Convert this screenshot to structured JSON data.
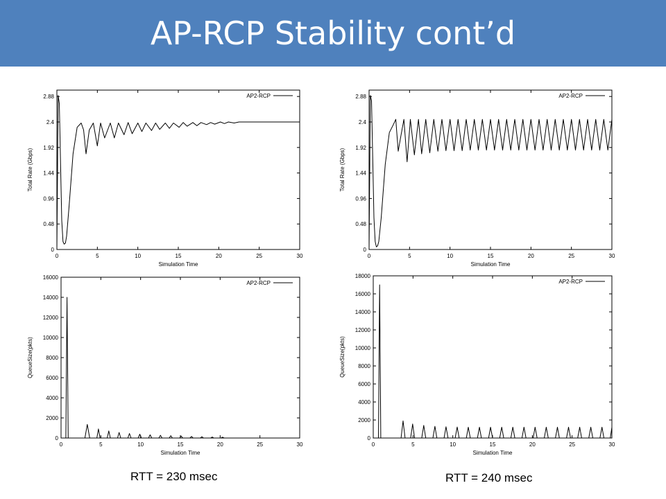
{
  "slide": {
    "title": "AP-RCP Stability cont’d",
    "caption_left": "RTT = 230  msec",
    "caption_right": "RTT = 240  msec",
    "accent_color": "#4f81bd",
    "title_color": "#ffffff"
  },
  "chart_data": [
    {
      "type": "line",
      "xlabel": "Simulation Time",
      "ylabel": "Total Rate (Gbps)",
      "xlim": [
        0,
        30
      ],
      "ylim": [
        0,
        3.0
      ],
      "xticks": [
        0,
        5,
        10,
        15,
        20,
        25,
        30
      ],
      "yticks": [
        0,
        0.48,
        0.96,
        1.44,
        1.92,
        2.4,
        2.88
      ],
      "xtick_labels": [
        "0",
        "5",
        "10",
        "15",
        "20",
        "25",
        "30"
      ],
      "ytick_labels": [
        "0",
        "0.48",
        "0.96",
        "1.44",
        "1.92",
        "2.4",
        "2.88"
      ],
      "legend": "top-right",
      "grid": false,
      "series": [
        {
          "name": "AP2-RCP",
          "x": [
            0,
            0.15,
            0.3,
            0.45,
            0.6,
            0.75,
            0.9,
            1.05,
            1.2,
            1.5,
            2.0,
            2.5,
            3.0,
            3.3,
            3.6,
            4.0,
            4.5,
            5.0,
            5.4,
            5.9,
            6.6,
            7.1,
            7.6,
            8.3,
            8.8,
            9.3,
            10.0,
            10.5,
            11.0,
            11.7,
            12.2,
            12.7,
            13.4,
            13.9,
            14.4,
            15.1,
            15.6,
            16.1,
            16.8,
            17.3,
            17.8,
            18.5,
            19.0,
            19.5,
            20.2,
            20.7,
            21.2,
            21.9,
            22.5,
            30
          ],
          "values": [
            0,
            2.9,
            2.75,
            1.6,
            0.55,
            0.15,
            0.1,
            0.12,
            0.25,
            0.8,
            1.8,
            2.3,
            2.38,
            2.25,
            1.8,
            2.25,
            2.38,
            1.95,
            2.38,
            2.1,
            2.38,
            2.1,
            2.38,
            2.16,
            2.39,
            2.18,
            2.38,
            2.22,
            2.38,
            2.24,
            2.38,
            2.26,
            2.38,
            2.28,
            2.38,
            2.3,
            2.39,
            2.32,
            2.39,
            2.33,
            2.39,
            2.35,
            2.39,
            2.36,
            2.4,
            2.37,
            2.4,
            2.38,
            2.4,
            2.4
          ]
        }
      ]
    },
    {
      "type": "line",
      "xlabel": "Simulation Time",
      "ylabel": "Total Rate (Gbps)",
      "xlim": [
        0,
        30
      ],
      "ylim": [
        0,
        3.0
      ],
      "xticks": [
        0,
        5,
        10,
        15,
        20,
        25,
        30
      ],
      "yticks": [
        0,
        0.48,
        0.96,
        1.44,
        1.92,
        2.4,
        2.88
      ],
      "xtick_labels": [
        "0",
        "5",
        "10",
        "15",
        "20",
        "25",
        "30"
      ],
      "ytick_labels": [
        "0",
        "0.48",
        "0.96",
        "1.44",
        "1.92",
        "2.4",
        "2.88"
      ],
      "legend": "top-right",
      "grid": false,
      "series": [
        {
          "name": "AP2-RCP",
          "x": [
            0,
            0.15,
            0.3,
            0.45,
            0.6,
            0.75,
            0.9,
            1.05,
            1.2,
            1.5,
            2.0,
            2.5,
            3.0,
            3.3,
            3.6,
            4.0,
            4.3,
            4.7,
            5.1,
            5.6,
            6.1,
            6.5,
            7.0,
            7.5,
            8.0,
            8.5,
            9.0,
            9.5,
            10.0,
            10.5,
            11.0,
            11.5,
            12.0,
            12.5,
            13.0,
            13.5,
            14.0,
            14.5,
            15.0,
            15.5,
            16.0,
            16.5,
            17.0,
            17.5,
            18.0,
            18.5,
            19.0,
            19.5,
            20.0,
            20.5,
            21.0,
            21.5,
            22.0,
            22.5,
            23.0,
            23.5,
            24.0,
            24.5,
            25.0,
            25.5,
            26.0,
            26.5,
            27.0,
            27.5,
            28.0,
            28.5,
            29.0,
            29.5,
            30
          ],
          "values": [
            0,
            2.9,
            2.8,
            1.7,
            0.6,
            0.15,
            0.05,
            0.07,
            0.15,
            0.6,
            1.6,
            2.2,
            2.35,
            2.45,
            1.85,
            2.2,
            2.45,
            1.65,
            2.45,
            1.78,
            2.45,
            1.8,
            2.45,
            1.82,
            2.45,
            1.85,
            2.45,
            1.86,
            2.45,
            1.86,
            2.45,
            1.86,
            2.45,
            1.87,
            2.45,
            1.87,
            2.45,
            1.87,
            2.45,
            1.87,
            2.45,
            1.87,
            2.45,
            1.87,
            2.45,
            1.87,
            2.45,
            1.87,
            2.45,
            1.87,
            2.45,
            1.87,
            2.45,
            1.87,
            2.45,
            1.87,
            2.45,
            1.87,
            2.45,
            1.87,
            2.45,
            1.87,
            2.45,
            1.87,
            2.45,
            1.87,
            2.45,
            1.87,
            2.45
          ]
        }
      ]
    },
    {
      "type": "line",
      "xlabel": "Simulation Time",
      "ylabel": "QueueSize(pkts)",
      "xlim": [
        0,
        30
      ],
      "ylim": [
        0,
        16000
      ],
      "xticks": [
        0,
        5,
        10,
        15,
        20,
        25,
        30
      ],
      "yticks": [
        0,
        2000,
        4000,
        6000,
        8000,
        10000,
        12000,
        14000,
        16000
      ],
      "xtick_labels": [
        "0",
        "5",
        "10",
        "15",
        "20",
        "25",
        "30"
      ],
      "ytick_labels": [
        "0",
        "2000",
        "4000",
        "6000",
        "8000",
        "10000",
        "12000",
        "14000",
        "16000"
      ],
      "legend": "top-right",
      "grid": false,
      "series": [
        {
          "name": "AP2-RCP",
          "x": [
            0,
            0.6,
            0.75,
            0.9,
            1.1,
            3.0,
            3.3,
            3.6,
            4.5,
            4.7,
            4.9,
            5.8,
            6.0,
            6.2,
            7.1,
            7.3,
            7.5,
            8.4,
            8.6,
            8.8,
            9.7,
            9.9,
            10.1,
            11.0,
            11.2,
            11.4,
            12.3,
            12.5,
            12.7,
            13.6,
            13.8,
            14.0,
            14.9,
            15.1,
            15.3,
            16.2,
            16.4,
            16.6,
            17.5,
            17.7,
            17.9,
            18.8,
            19.0,
            19.2,
            20.1,
            20.3,
            20.5,
            21.0,
            30
          ],
          "values": [
            0,
            0,
            14000,
            0,
            0,
            0,
            1350,
            0,
            0,
            900,
            0,
            0,
            700,
            0,
            0,
            550,
            0,
            0,
            450,
            0,
            0,
            380,
            0,
            0,
            320,
            0,
            0,
            270,
            0,
            0,
            230,
            0,
            0,
            190,
            0,
            0,
            160,
            0,
            0,
            130,
            0,
            0,
            100,
            0,
            0,
            80,
            0,
            0,
            0
          ]
        }
      ]
    },
    {
      "type": "line",
      "xlabel": "Simulation Time",
      "ylabel": "QueueSize(pkts)",
      "xlim": [
        0,
        30
      ],
      "ylim": [
        0,
        18000
      ],
      "xticks": [
        0,
        5,
        10,
        15,
        20,
        25,
        30
      ],
      "yticks": [
        0,
        2000,
        4000,
        6000,
        8000,
        10000,
        12000,
        14000,
        16000,
        18000
      ],
      "xtick_labels": [
        "0",
        "5",
        "10",
        "15",
        "20",
        "25",
        "30"
      ],
      "ytick_labels": [
        "0",
        "2000",
        "4000",
        "6000",
        "8000",
        "10000",
        "12000",
        "14000",
        "16000",
        "18000"
      ],
      "legend": "top-right",
      "grid": false,
      "series": [
        {
          "name": "AP2-RCP",
          "x": [
            0,
            0.65,
            0.8,
            0.95,
            1.2,
            3.5,
            3.75,
            4.0,
            4.7,
            4.95,
            5.2,
            6.1,
            6.35,
            6.6,
            7.5,
            7.75,
            8.0,
            8.9,
            9.15,
            9.4,
            10.3,
            10.55,
            10.8,
            11.7,
            11.95,
            12.2,
            13.1,
            13.35,
            13.6,
            14.5,
            14.75,
            15.0,
            15.9,
            16.15,
            16.4,
            17.3,
            17.55,
            17.8,
            18.7,
            18.95,
            19.2,
            20.1,
            20.35,
            20.6,
            21.5,
            21.75,
            22.0,
            22.9,
            23.15,
            23.4,
            24.3,
            24.55,
            24.8,
            25.7,
            25.95,
            26.2,
            27.1,
            27.35,
            27.6,
            28.5,
            28.75,
            29.0,
            29.8,
            30
          ],
          "values": [
            0,
            0,
            17000,
            0,
            0,
            0,
            1900,
            0,
            0,
            1550,
            0,
            0,
            1400,
            0,
            0,
            1300,
            0,
            0,
            1250,
            0,
            0,
            1220,
            0,
            0,
            1200,
            0,
            0,
            1200,
            0,
            0,
            1200,
            0,
            0,
            1200,
            0,
            0,
            1200,
            0,
            0,
            1200,
            0,
            0,
            1200,
            0,
            0,
            1200,
            0,
            0,
            1200,
            0,
            0,
            1200,
            0,
            0,
            1200,
            0,
            0,
            1200,
            0,
            0,
            1200,
            0,
            0,
            1200
          ]
        }
      ]
    }
  ]
}
